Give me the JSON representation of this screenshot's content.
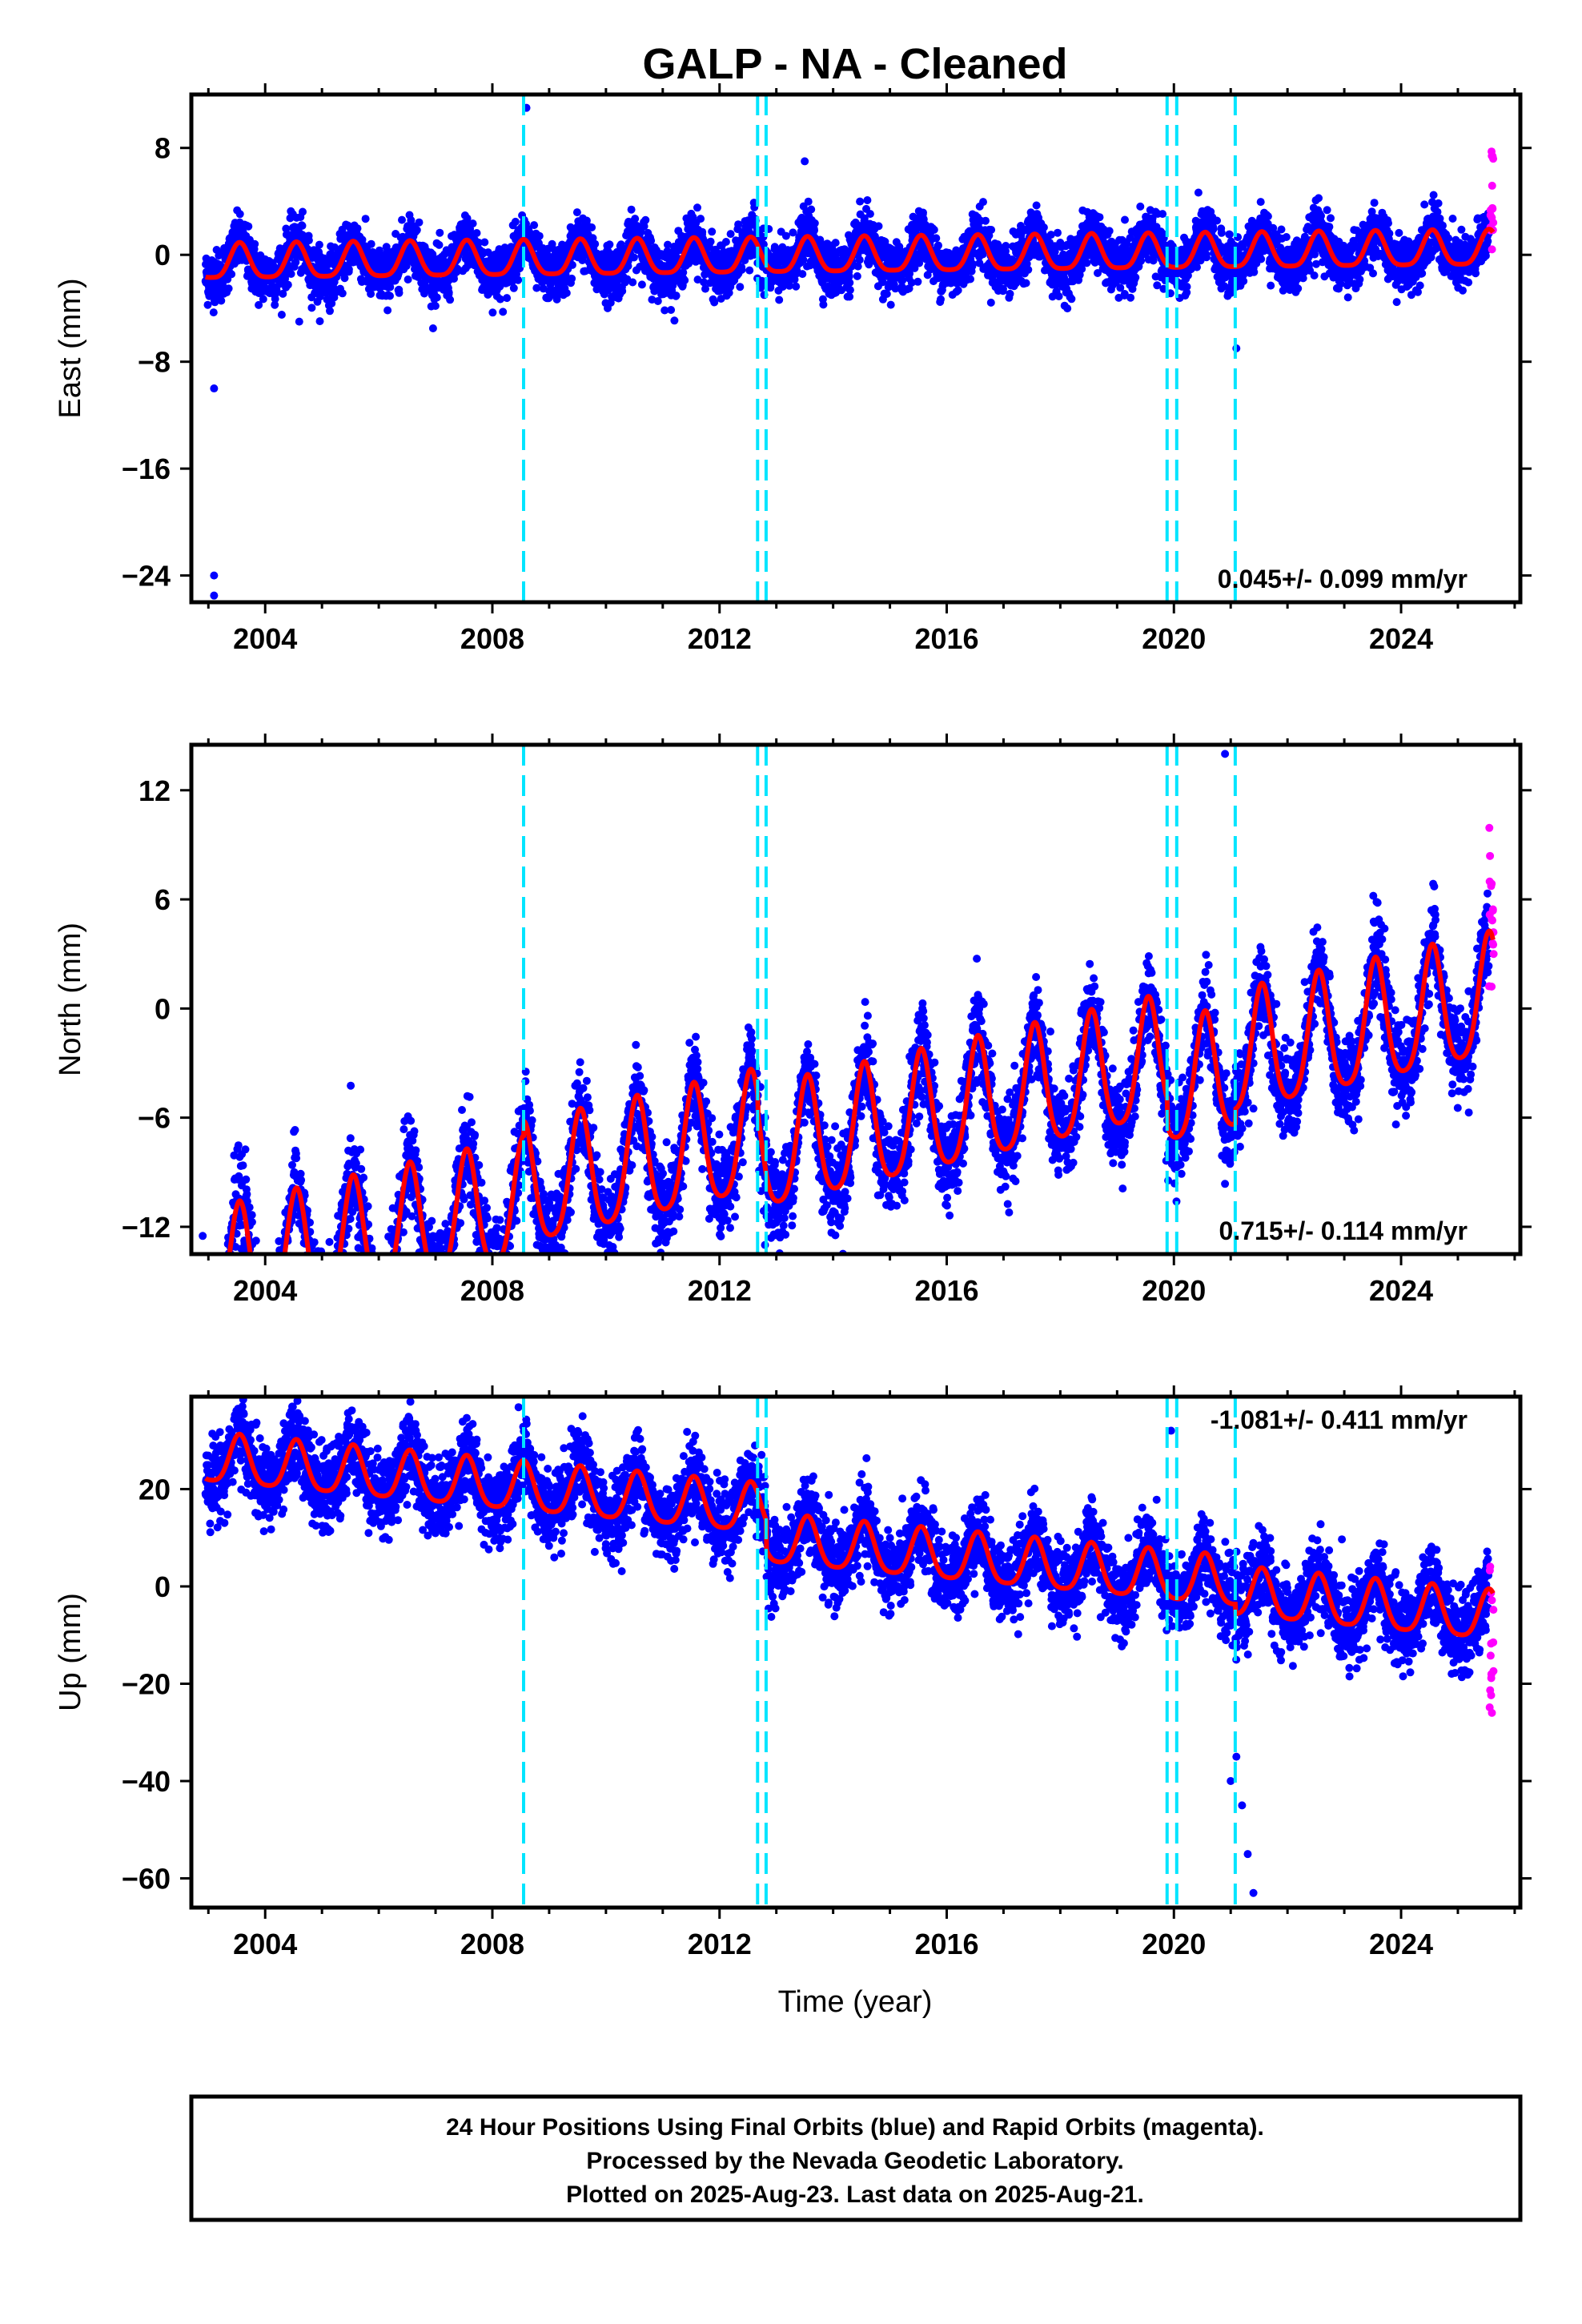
{
  "title": "GALP  - NA - Cleaned",
  "colors": {
    "final_orbits": "#0000ff",
    "rapid_orbits": "#ff00ff",
    "model": "#ff0000",
    "offsets": "#00e5ff",
    "frame": "#000000"
  },
  "x_axis": {
    "label": "Time (year)",
    "range": [
      2002.7,
      2026.1
    ],
    "ticks": [
      2004,
      2008,
      2012,
      2016,
      2020,
      2024
    ],
    "tick_labels": [
      "2004",
      "2008",
      "2012",
      "2016",
      "2020",
      "2024"
    ],
    "minor_tick_step": 1
  },
  "offset_epochs": [
    2008.55,
    2012.67,
    2012.82,
    2019.88,
    2020.05,
    2021.08
  ],
  "chart_data": [
    {
      "type": "scatter",
      "component": "east",
      "ylabel": "East (mm)",
      "ylim": [
        -26,
        12
      ],
      "yticks": [
        8,
        0,
        -8,
        -16,
        -24
      ],
      "ytick_labels": [
        "8",
        "0",
        "−8",
        "−16",
        "−24"
      ],
      "rate_text": "0.045+/- 0.099 mm/yr",
      "rate_position": "bottom-right",
      "model": {
        "velocity_mm_yr": 0.045,
        "intercept_mm": -0.2,
        "annual_amplitude_mm": 1.3,
        "annual_peak_fraction": 0.55,
        "semiannual_amplitude_mm": 0.3,
        "steps": []
      },
      "scatter_sd_mm": 1.0,
      "outliers": [
        [
          2003.1,
          -10
        ],
        [
          2003.1,
          -24
        ],
        [
          2003.1,
          -25.5
        ],
        [
          2008.6,
          11
        ],
        [
          2013.5,
          7
        ],
        [
          2021.1,
          -7
        ],
        [
          2004.6,
          -5
        ]
      ],
      "rapid_range": [
        -1,
        8
      ]
    },
    {
      "type": "scatter",
      "component": "north",
      "ylabel": "North (mm)",
      "ylim": [
        -13.5,
        14.5
      ],
      "yticks": [
        12,
        6,
        0,
        -6,
        -12
      ],
      "ytick_labels": [
        "12",
        "6",
        "0",
        "−6",
        "−12"
      ],
      "rate_text": "0.715+/- 0.114 mm/yr",
      "rate_position": "bottom-right",
      "model": {
        "velocity_mm_yr": 0.715,
        "intercept_mm": -7.0,
        "annual_amplitude_mm": 3.3,
        "annual_peak_fraction": 0.55,
        "semiannual_amplitude_mm": 0.6,
        "steps": [
          [
            2008.55,
            0.8
          ],
          [
            2012.67,
            -1.0
          ],
          [
            2019.88,
            -1.5
          ],
          [
            2021.08,
            0.8
          ]
        ]
      },
      "scatter_sd_mm": 1.2,
      "outliers": [
        [
          2020.9,
          14
        ],
        [
          2012.8,
          -13
        ],
        [
          2015.2,
          -8.5
        ],
        [
          2021.4,
          -5.5
        ],
        [
          2002.9,
          -12.5
        ],
        [
          2010.3,
          -10.5
        ]
      ],
      "rapid_range": [
        1,
        11
      ]
    },
    {
      "type": "scatter",
      "component": "up",
      "ylabel": "Up (mm)",
      "ylim": [
        -66,
        39
      ],
      "yticks": [
        20,
        0,
        -20,
        -40,
        -60
      ],
      "ytick_labels": [
        "20",
        "0",
        "−20",
        "−40",
        "−60"
      ],
      "rate_text": "-1.081+/- 0.411 mm/yr",
      "rate_position": "top-right",
      "model": {
        "velocity_mm_yr": -1.081,
        "intercept_mm": 14.0,
        "annual_amplitude_mm": 5.0,
        "annual_peak_fraction": 0.55,
        "semiannual_amplitude_mm": 1.0,
        "steps": [
          [
            2012.82,
            -6.0
          ],
          [
            2021.08,
            -2.0
          ]
        ]
      },
      "scatter_sd_mm": 4.0,
      "outliers": [
        [
          2003.6,
          37
        ],
        [
          2004.7,
          34
        ],
        [
          2019.95,
          32
        ],
        [
          2021.4,
          -63
        ],
        [
          2021.3,
          -55
        ],
        [
          2021.2,
          -45
        ],
        [
          2021.0,
          -40
        ],
        [
          2021.1,
          -35
        ]
      ],
      "rapid_range": [
        -28,
        10
      ]
    }
  ],
  "footer": {
    "line1": "24 Hour Positions Using Final Orbits (blue) and Rapid Orbits (magenta).",
    "line2": "Processed by the Nevada Geodetic Laboratory.",
    "line3": "Plotted on 2025-Aug-23. Last data on 2025-Aug-21."
  }
}
